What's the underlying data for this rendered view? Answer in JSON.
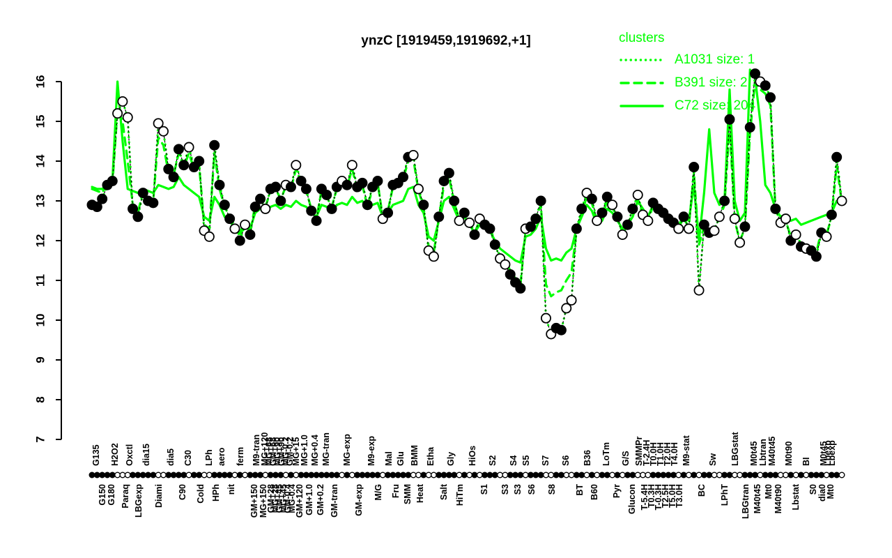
{
  "chart_data": {
    "type": "line",
    "title": "ynzC [1919459,1919692,+1]",
    "xlabel": "",
    "ylabel": "",
    "ylim": [
      7,
      16
    ],
    "yticks": [
      7,
      8,
      9,
      10,
      11,
      12,
      13,
      14,
      15,
      16
    ],
    "grid": "off",
    "colors": {
      "cluster_line": "#00ff00",
      "marker_filled": "#000000",
      "marker_open_fill": "#ffffff",
      "axis": "#000000"
    },
    "legend": {
      "title": "clusters",
      "position": "top-right",
      "entries": [
        {
          "label": "A1031 size: 1",
          "style": "dotted"
        },
        {
          "label": "B391 size: 2",
          "style": "dashed"
        },
        {
          "label": "C72 size: 204",
          "style": "solid"
        }
      ]
    },
    "samples": {
      "name": "ynzC expression per condition (log2 signal)",
      "y": [
        12.9,
        12.85,
        13.05,
        13.4,
        13.5,
        15.2,
        15.5,
        15.1,
        12.8,
        12.6,
        13.2,
        13.0,
        12.95,
        14.95,
        14.75,
        13.8,
        13.6,
        14.3,
        13.9,
        14.35,
        13.85,
        14.0,
        12.25,
        12.1,
        14.4,
        13.4,
        12.9,
        12.55,
        12.3,
        12.0,
        12.4,
        12.15,
        12.85,
        13.05,
        12.8,
        13.3,
        13.35,
        13.0,
        13.4,
        13.35,
        13.9,
        13.5,
        13.3,
        12.75,
        12.5,
        13.3,
        13.15,
        12.8,
        13.35,
        13.5,
        13.4,
        13.9,
        13.35,
        13.45,
        12.9,
        13.35,
        13.5,
        12.55,
        12.7,
        13.4,
        13.45,
        13.6,
        14.1,
        14.15,
        13.3,
        12.9,
        11.75,
        11.6,
        12.6,
        13.5,
        13.7,
        13.0,
        12.5,
        12.7,
        12.45,
        12.15,
        12.55,
        12.4,
        12.3,
        11.9,
        11.55,
        11.4,
        11.15,
        10.95,
        10.8,
        12.3,
        12.35,
        12.55,
        13.0,
        10.05,
        9.65,
        9.8,
        9.75,
        10.3,
        10.5,
        12.3,
        12.8,
        13.2,
        13.05,
        12.5,
        12.7,
        13.1,
        12.9,
        12.6,
        12.15,
        12.4,
        12.8,
        13.15,
        12.65,
        12.5,
        12.95,
        12.8,
        12.7,
        12.55,
        12.45,
        12.3,
        12.6,
        12.3,
        13.85,
        10.75,
        12.4,
        12.2,
        12.25,
        12.6,
        13.0,
        15.05,
        12.55,
        11.95,
        12.35,
        14.85,
        16.2,
        16.0,
        15.9,
        15.6,
        12.8,
        12.45,
        12.55,
        12.0,
        12.15,
        11.85,
        11.8,
        11.75,
        11.6,
        12.2,
        12.1,
        12.65,
        14.1,
        13.0
      ],
      "open": [
        0,
        0,
        0,
        0,
        0,
        1,
        1,
        1,
        0,
        0,
        0,
        0,
        0,
        1,
        1,
        0,
        0,
        0,
        0,
        1,
        0,
        0,
        1,
        1,
        0,
        0,
        0,
        0,
        1,
        0,
        1,
        0,
        0,
        0,
        1,
        0,
        0,
        0,
        1,
        0,
        1,
        0,
        0,
        0,
        0,
        0,
        0,
        0,
        0,
        1,
        0,
        1,
        0,
        0,
        0,
        0,
        0,
        1,
        0,
        0,
        0,
        0,
        0,
        1,
        1,
        0,
        1,
        1,
        0,
        0,
        0,
        0,
        1,
        0,
        1,
        0,
        1,
        0,
        0,
        0,
        1,
        1,
        0,
        0,
        0,
        1,
        0,
        0,
        0,
        1,
        1,
        0,
        0,
        1,
        1,
        0,
        0,
        1,
        0,
        1,
        0,
        0,
        1,
        0,
        1,
        0,
        0,
        1,
        1,
        1,
        0,
        0,
        0,
        0,
        0,
        1,
        0,
        1,
        0,
        1,
        0,
        0,
        1,
        1,
        0,
        0,
        1,
        1,
        0,
        0,
        0,
        1,
        0,
        0,
        0,
        1,
        1,
        0,
        1,
        0,
        1,
        0,
        0,
        0,
        1,
        0,
        0,
        1
      ]
    },
    "cluster_series": [
      {
        "name": "A1031",
        "style": "dotted",
        "y": [
          12.9,
          12.85,
          13.05,
          13.4,
          13.5,
          15.2,
          15.5,
          15.1,
          12.8,
          12.6,
          13.2,
          13.0,
          12.95,
          14.95,
          14.75,
          13.8,
          13.6,
          14.3,
          13.9,
          14.35,
          13.85,
          14.0,
          12.25,
          12.1,
          14.4,
          13.4,
          12.9,
          12.55,
          12.3,
          12.0,
          12.4,
          12.15,
          12.85,
          13.05,
          12.8,
          13.3,
          13.35,
          13.0,
          13.4,
          13.35,
          13.9,
          13.5,
          13.3,
          12.75,
          12.5,
          13.3,
          13.15,
          12.8,
          13.35,
          13.5,
          13.4,
          13.9,
          13.35,
          13.45,
          12.9,
          13.35,
          13.5,
          12.55,
          12.7,
          13.4,
          13.45,
          13.6,
          14.1,
          14.15,
          13.3,
          12.9,
          11.75,
          11.6,
          12.6,
          13.5,
          13.7,
          13.0,
          12.5,
          12.7,
          12.45,
          12.15,
          12.55,
          12.4,
          12.3,
          11.9,
          11.55,
          11.4,
          11.15,
          10.95,
          10.8,
          12.3,
          12.35,
          12.55,
          13.0,
          10.05,
          9.65,
          9.8,
          9.75,
          10.3,
          10.5,
          12.3,
          12.8,
          13.2,
          13.05,
          12.5,
          12.7,
          13.1,
          12.9,
          12.6,
          12.15,
          12.4,
          12.8,
          13.15,
          12.65,
          12.5,
          12.95,
          12.8,
          12.7,
          12.55,
          12.45,
          12.3,
          12.6,
          12.3,
          13.85,
          10.75,
          12.4,
          12.2,
          12.25,
          12.6,
          13.0,
          15.05,
          12.55,
          11.95,
          12.35,
          14.85,
          16.2,
          16.0,
          15.9,
          15.6,
          12.8,
          12.45,
          12.55,
          12.0,
          12.15,
          11.85,
          11.8,
          11.75,
          11.6,
          12.2,
          12.1,
          12.65,
          14.1,
          13.0
        ]
      },
      {
        "name": "B391",
        "style": "dashed",
        "y": [
          13.3,
          13.25,
          13.2,
          13.45,
          13.4,
          15.3,
          15.0,
          14.0,
          12.9,
          12.7,
          13.25,
          13.05,
          13.0,
          14.6,
          14.4,
          13.7,
          13.65,
          14.2,
          13.85,
          14.2,
          13.8,
          13.9,
          12.4,
          12.3,
          14.2,
          13.3,
          12.85,
          12.6,
          12.4,
          12.1,
          12.45,
          12.2,
          12.9,
          13.0,
          12.85,
          13.25,
          13.3,
          13.05,
          13.35,
          13.3,
          13.8,
          13.45,
          13.25,
          12.8,
          12.55,
          13.25,
          13.1,
          12.85,
          13.3,
          13.45,
          13.35,
          13.8,
          13.3,
          13.4,
          12.85,
          13.3,
          13.45,
          12.6,
          12.75,
          13.35,
          13.4,
          13.55,
          14.0,
          14.05,
          13.25,
          12.85,
          11.85,
          11.7,
          12.55,
          13.4,
          13.6,
          12.95,
          12.55,
          12.65,
          12.5,
          12.2,
          12.5,
          12.45,
          12.35,
          11.95,
          11.6,
          11.5,
          11.25,
          11.05,
          10.9,
          12.25,
          12.3,
          12.5,
          12.9,
          10.9,
          10.6,
          10.7,
          10.75,
          11.0,
          11.2,
          12.25,
          12.7,
          13.1,
          12.95,
          12.45,
          12.6,
          13.0,
          12.85,
          12.55,
          12.2,
          12.35,
          12.75,
          13.05,
          12.6,
          12.45,
          12.9,
          12.75,
          12.65,
          12.5,
          12.4,
          12.35,
          12.55,
          12.35,
          13.7,
          11.9,
          12.35,
          12.25,
          12.3,
          12.55,
          12.9,
          14.9,
          12.5,
          12.0,
          12.3,
          14.7,
          16.0,
          15.8,
          15.7,
          15.4,
          12.75,
          12.5,
          12.5,
          12.1,
          12.2,
          11.9,
          11.85,
          11.8,
          11.7,
          12.25,
          12.15,
          12.6,
          13.9,
          12.95
        ]
      },
      {
        "name": "C72",
        "style": "solid",
        "y": [
          13.35,
          13.3,
          13.3,
          13.4,
          13.5,
          16.0,
          14.5,
          13.3,
          13.25,
          13.2,
          13.3,
          13.25,
          13.2,
          13.4,
          13.35,
          13.3,
          13.35,
          13.6,
          13.4,
          13.3,
          13.2,
          13.1,
          12.6,
          12.5,
          13.1,
          12.9,
          12.6,
          12.5,
          12.3,
          12.2,
          12.5,
          12.3,
          12.7,
          12.8,
          12.7,
          12.85,
          12.9,
          12.8,
          12.9,
          12.85,
          13.0,
          12.9,
          12.85,
          12.7,
          12.6,
          12.9,
          12.85,
          12.7,
          12.9,
          12.95,
          12.9,
          13.1,
          12.95,
          13.0,
          12.8,
          12.9,
          12.95,
          12.6,
          12.7,
          12.9,
          12.95,
          13.0,
          13.3,
          13.35,
          12.9,
          12.7,
          12.1,
          12.0,
          12.5,
          13.0,
          13.1,
          12.8,
          12.5,
          12.6,
          12.4,
          12.2,
          12.4,
          12.3,
          12.25,
          12.0,
          11.8,
          11.7,
          11.6,
          11.5,
          11.45,
          12.1,
          12.15,
          12.3,
          12.6,
          11.8,
          11.5,
          11.55,
          11.5,
          11.7,
          11.8,
          12.3,
          12.6,
          12.9,
          12.75,
          12.4,
          12.5,
          12.8,
          12.7,
          12.5,
          12.3,
          12.4,
          12.6,
          13.0,
          12.8,
          12.6,
          12.9,
          12.85,
          12.75,
          12.6,
          12.5,
          12.4,
          12.6,
          12.5,
          13.4,
          12.0,
          13.2,
          14.8,
          13.2,
          12.9,
          13.0,
          15.8,
          13.0,
          12.5,
          12.7,
          16.3,
          16.1,
          15.0,
          13.4,
          13.2,
          12.8,
          12.6,
          12.65,
          12.5,
          12.55,
          12.4,
          12.45,
          12.5,
          12.55,
          12.6,
          12.65,
          12.7,
          13.0,
          12.95
        ]
      }
    ],
    "x_axis_labels": [
      [
        "G135",
        "t",
        138
      ],
      [
        "G150",
        "b",
        147
      ],
      [
        "G180",
        "b",
        160
      ],
      [
        "H2O2",
        "t",
        165
      ],
      [
        "Paraq",
        "b",
        180
      ],
      [
        "Oxctl",
        "t",
        186
      ],
      [
        "LBGexp",
        "b",
        199
      ],
      [
        "dia15",
        "t",
        210
      ],
      [
        "Diami",
        "b",
        228
      ],
      [
        "dia5",
        "t",
        245
      ],
      [
        "C90",
        "b",
        262
      ],
      [
        "C30",
        "t",
        270
      ],
      [
        "Cold",
        "b",
        288
      ],
      [
        "LPh",
        "t",
        300
      ],
      [
        "HPh",
        "b",
        310
      ],
      [
        "aero",
        "t",
        318
      ],
      [
        "nit",
        "b",
        332
      ],
      [
        "ferm",
        "t",
        345
      ],
      [
        "GM+150",
        "b",
        365
      ],
      [
        "M9-tran",
        "t",
        368
      ],
      [
        "MG+150",
        "b",
        378
      ],
      [
        "MG+120",
        "t",
        380
      ],
      [
        "MG+68",
        "t",
        386
      ],
      [
        "GM+28",
        "b",
        389
      ],
      [
        "GM+68",
        "t",
        392
      ],
      [
        "MG+28",
        "b",
        395
      ],
      [
        "MG+90",
        "t",
        398
      ],
      [
        "GM+45",
        "b",
        401
      ],
      [
        "GM+90",
        "t",
        404
      ],
      [
        "MG+45",
        "b",
        407
      ],
      [
        "MG-0.2",
        "t",
        410
      ],
      [
        "GM-0.4",
        "b",
        413
      ],
      [
        "GM-0.2",
        "t",
        416
      ],
      [
        "MG-0.4",
        "b",
        419
      ],
      [
        "MG+15",
        "t",
        425
      ],
      [
        "GM+120",
        "b",
        430
      ],
      [
        "MG+1.0",
        "t",
        437
      ],
      [
        "GM+1.0",
        "b",
        444
      ],
      [
        "MG+0.4",
        "t",
        452
      ],
      [
        "GM+0.2",
        "b",
        460
      ],
      [
        "MG-tran",
        "t",
        468
      ],
      [
        "GM-tran",
        "b",
        480
      ],
      [
        "MG-exp",
        "t",
        498
      ],
      [
        "GM-exp",
        "b",
        515
      ],
      [
        "M9-exp",
        "t",
        533
      ],
      [
        "M/G",
        "b",
        543
      ],
      [
        "Mal",
        "t",
        558
      ],
      [
        "Fru",
        "b",
        568
      ],
      [
        "Glu",
        "t",
        575
      ],
      [
        "SMM",
        "b",
        585
      ],
      [
        "BMM",
        "t",
        595
      ],
      [
        "Heat",
        "b",
        603
      ],
      [
        "Etha",
        "t",
        618
      ],
      [
        "Salt",
        "b",
        637
      ],
      [
        "Gly",
        "t",
        647
      ],
      [
        "HiTm",
        "b",
        660
      ],
      [
        "HiOs",
        "t",
        678
      ],
      [
        "S1",
        "b",
        695
      ],
      [
        "S2",
        "t",
        707
      ],
      [
        "S3",
        "b",
        725
      ],
      [
        "S4",
        "t",
        737
      ],
      [
        "S3",
        "b",
        743
      ],
      [
        "S5",
        "t",
        755
      ],
      [
        "S6",
        "b",
        763
      ],
      [
        "S7",
        "t",
        783
      ],
      [
        "S8",
        "b",
        792
      ],
      [
        "S6",
        "t",
        812
      ],
      [
        "BT",
        "b",
        832
      ],
      [
        "B36",
        "t",
        843
      ],
      [
        "B60",
        "b",
        853
      ],
      [
        "LoTm",
        "t",
        870
      ],
      [
        "Pyr",
        "b",
        885
      ],
      [
        "G/S",
        "t",
        898
      ],
      [
        "Glucon",
        "b",
        907
      ],
      [
        "SMMPr",
        "t",
        917
      ],
      [
        "T-5.4H",
        "b",
        925
      ],
      [
        "T-2.4H",
        "t",
        928
      ],
      [
        "T0.3H",
        "b",
        935
      ],
      [
        "T0.0H",
        "t",
        938
      ],
      [
        "T-0.3H",
        "b",
        945
      ],
      [
        "T1.0H",
        "t",
        948
      ],
      [
        "T2.5H",
        "b",
        955
      ],
      [
        "T2.0H",
        "t",
        958
      ],
      [
        "T5.0H",
        "b",
        965
      ],
      [
        "T4.0H",
        "t",
        968
      ],
      [
        "T3.0H",
        "b",
        975
      ],
      [
        "M9-stat",
        "t",
        985
      ],
      [
        "BC",
        "b",
        1007
      ],
      [
        "Sw",
        "t",
        1023
      ],
      [
        "LPhT",
        "b",
        1040
      ],
      [
        "LBGstat",
        "t",
        1055
      ],
      [
        "LBGtran",
        "b",
        1070
      ],
      [
        "M0t45",
        "t",
        1082
      ],
      [
        "M40t45",
        "b",
        1087
      ],
      [
        "Lbtran",
        "t",
        1095
      ],
      [
        "Mt0",
        "b",
        1103
      ],
      [
        "M40t45",
        "t",
        1108
      ],
      [
        "M40t90",
        "b",
        1117
      ],
      [
        "M0t90",
        "t",
        1132
      ],
      [
        "Lbstat",
        "b",
        1142
      ],
      [
        "BI",
        "t",
        1157
      ],
      [
        "S0",
        "b",
        1167
      ],
      [
        "dia0",
        "b",
        1180
      ],
      [
        "M0t45",
        "t",
        1182
      ],
      [
        "Lbexp",
        "t",
        1188
      ],
      [
        "Mt0",
        "b",
        1192
      ],
      [
        "Lbexp",
        "t",
        1194
      ]
    ]
  }
}
